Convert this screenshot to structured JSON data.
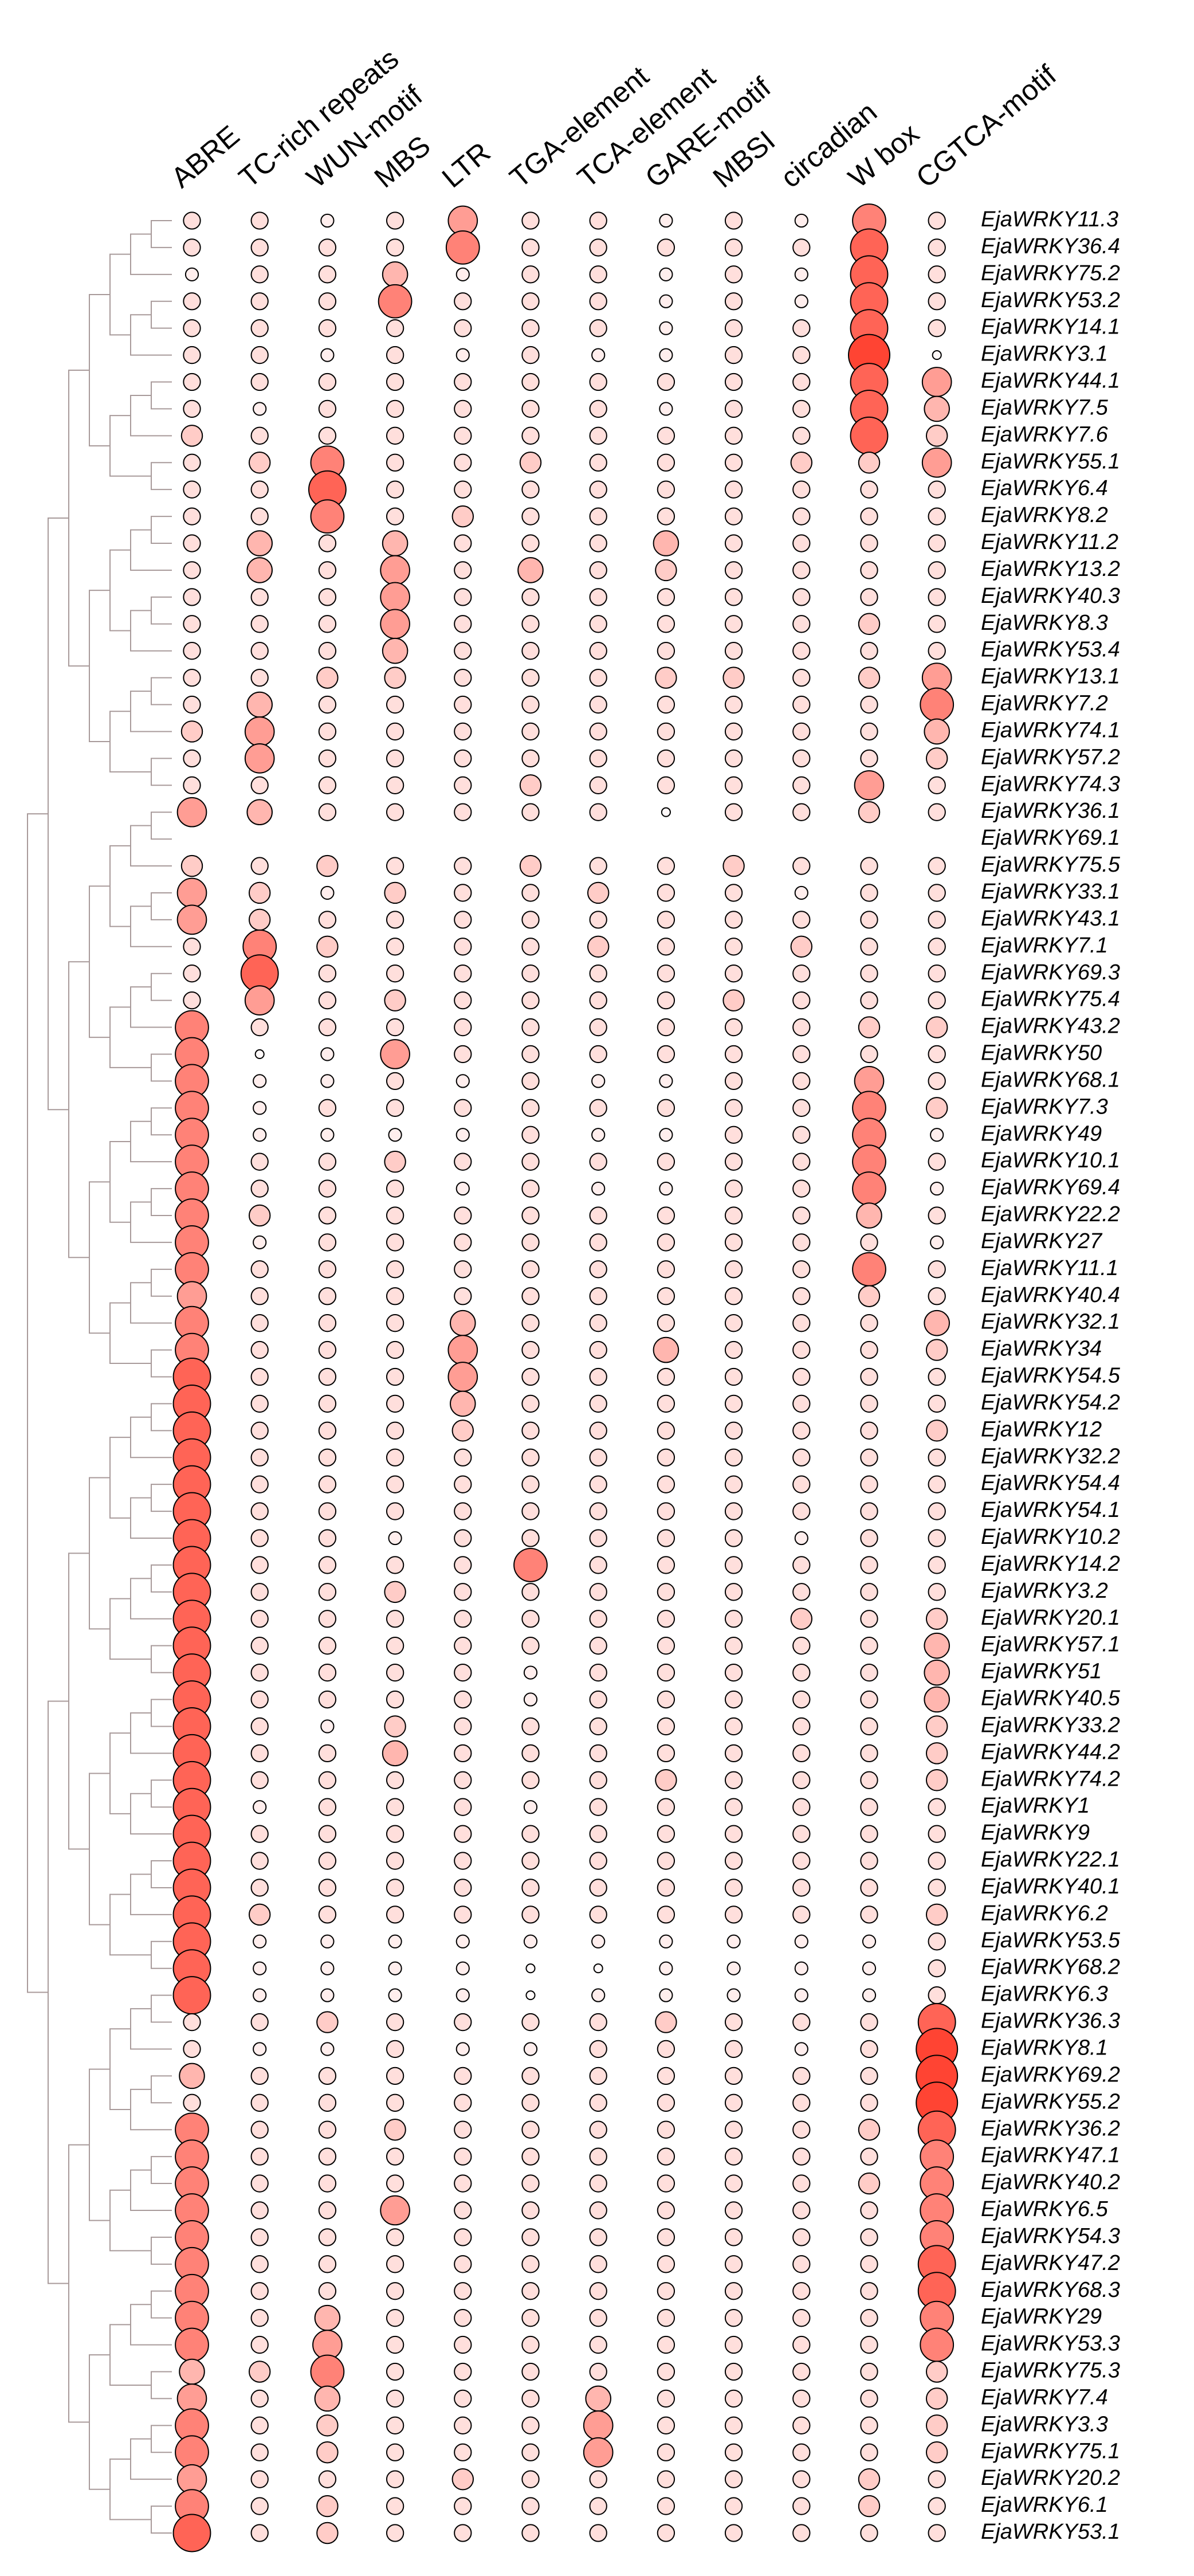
{
  "chart_data": {
    "type": "bubble",
    "columns": [
      "ABRE",
      "TC-rich repeats",
      "WUN-motif",
      "MBS",
      "LTR",
      "TGA-element",
      "TCA-element",
      "GARE-motif",
      "MBSI",
      "circadian",
      "W box",
      "CGTCA-motif"
    ],
    "rows": [
      "EjaWRKY11.3",
      "EjaWRKY36.4",
      "EjaWRKY75.2",
      "EjaWRKY53.2",
      "EjaWRKY14.1",
      "EjaWRKY3.1",
      "EjaWRKY44.1",
      "EjaWRKY7.5",
      "EjaWRKY7.6",
      "EjaWRKY55.1",
      "EjaWRKY6.4",
      "EjaWRKY8.2",
      "EjaWRKY11.2",
      "EjaWRKY13.2",
      "EjaWRKY40.3",
      "EjaWRKY8.3",
      "EjaWRKY53.4",
      "EjaWRKY13.1",
      "EjaWRKY7.2",
      "EjaWRKY74.1",
      "EjaWRKY57.2",
      "EjaWRKY74.3",
      "EjaWRKY36.1",
      "EjaWRKY69.1",
      "EjaWRKY75.5",
      "EjaWRKY33.1",
      "EjaWRKY43.1",
      "EjaWRKY7.1",
      "EjaWRKY69.3",
      "EjaWRKY75.4",
      "EjaWRKY43.2",
      "EjaWRKY50",
      "EjaWRKY68.1",
      "EjaWRKY7.3",
      "EjaWRKY49",
      "EjaWRKY10.1",
      "EjaWRKY69.4",
      "EjaWRKY22.2",
      "EjaWRKY27",
      "EjaWRKY11.1",
      "EjaWRKY40.4",
      "EjaWRKY32.1",
      "EjaWRKY34",
      "EjaWRKY54.5",
      "EjaWRKY54.2",
      "EjaWRKY12",
      "EjaWRKY32.2",
      "EjaWRKY54.4",
      "EjaWRKY54.1",
      "EjaWRKY10.2",
      "EjaWRKY14.2",
      "EjaWRKY3.2",
      "EjaWRKY20.1",
      "EjaWRKY57.1",
      "EjaWRKY51",
      "EjaWRKY40.5",
      "EjaWRKY33.2",
      "EjaWRKY44.2",
      "EjaWRKY74.2",
      "EjaWRKY1",
      "EjaWRKY9",
      "EjaWRKY22.1",
      "EjaWRKY40.1",
      "EjaWRKY6.2",
      "EjaWRKY53.5",
      "EjaWRKY68.2",
      "EjaWRKY6.3",
      "EjaWRKY36.3",
      "EjaWRKY8.1",
      "EjaWRKY69.2",
      "EjaWRKY55.2",
      "EjaWRKY36.2",
      "EjaWRKY47.1",
      "EjaWRKY40.2",
      "EjaWRKY6.5",
      "EjaWRKY54.3",
      "EjaWRKY47.2",
      "EjaWRKY68.3",
      "EjaWRKY29",
      "EjaWRKY53.3",
      "EjaWRKY75.3",
      "EjaWRKY7.4",
      "EjaWRKY3.3",
      "EjaWRKY75.1",
      "EjaWRKY20.2",
      "EjaWRKY6.1",
      "EjaWRKY53.1"
    ],
    "values": [
      [
        3,
        3,
        2,
        3,
        6,
        3,
        3,
        2,
        3,
        2,
        7,
        3
      ],
      [
        3,
        3,
        3,
        3,
        7,
        3,
        3,
        3,
        3,
        3,
        8,
        3
      ],
      [
        2,
        3,
        3,
        5,
        2,
        3,
        3,
        2,
        3,
        2,
        8,
        3
      ],
      [
        3,
        3,
        3,
        7,
        3,
        3,
        3,
        2,
        3,
        2,
        8,
        3
      ],
      [
        3,
        3,
        3,
        3,
        3,
        3,
        3,
        2,
        3,
        3,
        8,
        3
      ],
      [
        3,
        3,
        2,
        3,
        2,
        3,
        2,
        2,
        3,
        3,
        9,
        1
      ],
      [
        3,
        3,
        3,
        3,
        3,
        3,
        3,
        3,
        3,
        3,
        8,
        6
      ],
      [
        3,
        2,
        3,
        3,
        3,
        3,
        3,
        2,
        3,
        3,
        8,
        5
      ],
      [
        4,
        3,
        3,
        3,
        3,
        3,
        3,
        3,
        3,
        3,
        8,
        4
      ],
      [
        3,
        4,
        7,
        3,
        3,
        4,
        3,
        3,
        3,
        4,
        4,
        6
      ],
      [
        3,
        3,
        8,
        3,
        3,
        3,
        3,
        3,
        3,
        3,
        3,
        3
      ],
      [
        3,
        3,
        7,
        3,
        4,
        3,
        3,
        3,
        3,
        3,
        3,
        3
      ],
      [
        3,
        5,
        3,
        5,
        3,
        3,
        3,
        5,
        3,
        3,
        3,
        3
      ],
      [
        3,
        5,
        3,
        6,
        3,
        5,
        3,
        4,
        3,
        3,
        3,
        3
      ],
      [
        3,
        3,
        3,
        6,
        3,
        3,
        3,
        3,
        3,
        3,
        3,
        3
      ],
      [
        3,
        3,
        3,
        6,
        3,
        3,
        3,
        3,
        3,
        3,
        4,
        3
      ],
      [
        3,
        3,
        3,
        5,
        3,
        3,
        3,
        3,
        3,
        3,
        3,
        3
      ],
      [
        3,
        3,
        4,
        4,
        3,
        3,
        3,
        4,
        4,
        3,
        4,
        6
      ],
      [
        3,
        5,
        3,
        3,
        3,
        3,
        3,
        3,
        3,
        3,
        3,
        7
      ],
      [
        4,
        6,
        3,
        3,
        3,
        3,
        3,
        3,
        3,
        3,
        3,
        5
      ],
      [
        3,
        6,
        3,
        3,
        3,
        3,
        3,
        3,
        3,
        3,
        3,
        4
      ],
      [
        3,
        3,
        3,
        3,
        3,
        4,
        3,
        3,
        3,
        3,
        6,
        3
      ],
      [
        6,
        5,
        3,
        3,
        3,
        3,
        3,
        1,
        3,
        3,
        4,
        3
      ],
      [
        null,
        null,
        null,
        null,
        null,
        null,
        null,
        null,
        null,
        null,
        null,
        null
      ],
      [
        4,
        3,
        4,
        3,
        3,
        4,
        3,
        3,
        4,
        3,
        3,
        3
      ],
      [
        6,
        4,
        2,
        4,
        3,
        3,
        4,
        3,
        3,
        2,
        3,
        3
      ],
      [
        6,
        4,
        3,
        3,
        3,
        3,
        3,
        3,
        3,
        3,
        3,
        3
      ],
      [
        3,
        7,
        4,
        3,
        3,
        3,
        4,
        3,
        3,
        4,
        3,
        3
      ],
      [
        3,
        8,
        3,
        3,
        3,
        3,
        3,
        3,
        3,
        3,
        3,
        3
      ],
      [
        3,
        6,
        3,
        4,
        3,
        3,
        3,
        3,
        4,
        3,
        3,
        3
      ],
      [
        7,
        3,
        3,
        3,
        3,
        3,
        3,
        3,
        3,
        3,
        4,
        4
      ],
      [
        7,
        1,
        2,
        6,
        3,
        3,
        3,
        3,
        3,
        3,
        3,
        3
      ],
      [
        7,
        2,
        2,
        3,
        2,
        3,
        2,
        2,
        3,
        3,
        6,
        3
      ],
      [
        7,
        2,
        3,
        3,
        3,
        3,
        3,
        3,
        3,
        3,
        7,
        4
      ],
      [
        7,
        2,
        2,
        2,
        2,
        3,
        2,
        2,
        3,
        3,
        7,
        2
      ],
      [
        7,
        3,
        3,
        4,
        3,
        3,
        3,
        3,
        3,
        3,
        7,
        3
      ],
      [
        7,
        3,
        3,
        3,
        2,
        3,
        2,
        2,
        3,
        3,
        7,
        2
      ],
      [
        7,
        4,
        3,
        3,
        3,
        3,
        3,
        3,
        3,
        3,
        5,
        3
      ],
      [
        7,
        2,
        3,
        3,
        3,
        3,
        3,
        3,
        3,
        3,
        3,
        2
      ],
      [
        7,
        3,
        3,
        3,
        3,
        3,
        3,
        3,
        3,
        3,
        7,
        3
      ],
      [
        6,
        3,
        3,
        3,
        3,
        3,
        3,
        3,
        3,
        3,
        4,
        3
      ],
      [
        7,
        3,
        3,
        3,
        5,
        3,
        3,
        3,
        3,
        3,
        3,
        5
      ],
      [
        7,
        3,
        3,
        3,
        6,
        3,
        3,
        5,
        3,
        3,
        3,
        4
      ],
      [
        8,
        3,
        3,
        3,
        6,
        3,
        3,
        3,
        3,
        3,
        3,
        3
      ],
      [
        8,
        3,
        3,
        3,
        5,
        3,
        3,
        3,
        3,
        3,
        3,
        3
      ],
      [
        8,
        3,
        3,
        3,
        4,
        3,
        3,
        3,
        3,
        3,
        3,
        4
      ],
      [
        8,
        3,
        3,
        3,
        3,
        3,
        3,
        3,
        3,
        3,
        3,
        3
      ],
      [
        8,
        3,
        3,
        3,
        3,
        3,
        3,
        3,
        3,
        3,
        3,
        3
      ],
      [
        8,
        3,
        3,
        3,
        3,
        3,
        3,
        3,
        3,
        3,
        3,
        3
      ],
      [
        8,
        3,
        3,
        2,
        3,
        3,
        3,
        3,
        3,
        2,
        3,
        3
      ],
      [
        8,
        3,
        3,
        3,
        3,
        7,
        3,
        3,
        3,
        3,
        3,
        3
      ],
      [
        8,
        3,
        3,
        4,
        3,
        3,
        3,
        3,
        3,
        3,
        3,
        3
      ],
      [
        8,
        3,
        3,
        3,
        3,
        3,
        3,
        3,
        3,
        4,
        3,
        4
      ],
      [
        8,
        3,
        3,
        3,
        3,
        3,
        3,
        3,
        3,
        3,
        3,
        5
      ],
      [
        8,
        3,
        3,
        3,
        3,
        2,
        3,
        3,
        3,
        3,
        3,
        5
      ],
      [
        8,
        3,
        3,
        3,
        3,
        2,
        3,
        3,
        3,
        3,
        3,
        5
      ],
      [
        8,
        3,
        2,
        4,
        3,
        3,
        3,
        3,
        3,
        3,
        3,
        4
      ],
      [
        8,
        3,
        3,
        5,
        3,
        3,
        3,
        3,
        3,
        3,
        3,
        4
      ],
      [
        8,
        3,
        3,
        3,
        3,
        3,
        3,
        4,
        3,
        3,
        3,
        4
      ],
      [
        8,
        2,
        3,
        3,
        3,
        2,
        3,
        3,
        3,
        3,
        3,
        3
      ],
      [
        8,
        3,
        3,
        3,
        3,
        3,
        3,
        3,
        3,
        3,
        3,
        3
      ],
      [
        8,
        3,
        3,
        3,
        3,
        3,
        3,
        3,
        3,
        3,
        3,
        3
      ],
      [
        8,
        3,
        3,
        3,
        3,
        3,
        3,
        3,
        3,
        3,
        3,
        3
      ],
      [
        8,
        4,
        3,
        3,
        3,
        3,
        3,
        3,
        3,
        3,
        3,
        4
      ],
      [
        8,
        2,
        2,
        2,
        2,
        2,
        2,
        2,
        2,
        2,
        2,
        3
      ],
      [
        8,
        2,
        2,
        2,
        2,
        1,
        1,
        2,
        2,
        2,
        2,
        3
      ],
      [
        8,
        2,
        2,
        2,
        2,
        1,
        2,
        2,
        2,
        2,
        2,
        3
      ],
      [
        3,
        3,
        4,
        3,
        3,
        3,
        3,
        4,
        3,
        3,
        3,
        8
      ],
      [
        3,
        2,
        2,
        3,
        2,
        2,
        3,
        3,
        3,
        2,
        3,
        9
      ],
      [
        5,
        3,
        3,
        3,
        3,
        3,
        3,
        3,
        3,
        3,
        3,
        9
      ],
      [
        3,
        3,
        3,
        3,
        3,
        3,
        3,
        3,
        3,
        3,
        3,
        9
      ],
      [
        7,
        3,
        3,
        4,
        3,
        3,
        3,
        3,
        3,
        3,
        4,
        8
      ],
      [
        7,
        3,
        3,
        3,
        3,
        3,
        3,
        3,
        3,
        3,
        3,
        7
      ],
      [
        7,
        3,
        3,
        3,
        3,
        3,
        3,
        3,
        3,
        3,
        4,
        7
      ],
      [
        7,
        3,
        3,
        6,
        3,
        3,
        3,
        3,
        3,
        3,
        3,
        7
      ],
      [
        7,
        3,
        3,
        3,
        3,
        3,
        3,
        3,
        3,
        3,
        3,
        7
      ],
      [
        7,
        3,
        3,
        3,
        3,
        3,
        3,
        3,
        3,
        3,
        3,
        8
      ],
      [
        7,
        3,
        3,
        3,
        3,
        3,
        3,
        3,
        3,
        3,
        3,
        8
      ],
      [
        7,
        3,
        5,
        3,
        3,
        3,
        3,
        3,
        3,
        3,
        3,
        7
      ],
      [
        7,
        3,
        6,
        3,
        3,
        3,
        3,
        3,
        3,
        3,
        3,
        7
      ],
      [
        5,
        4,
        7,
        3,
        3,
        3,
        3,
        3,
        3,
        3,
        3,
        4
      ],
      [
        6,
        3,
        5,
        3,
        3,
        3,
        5,
        3,
        3,
        3,
        3,
        4
      ],
      [
        7,
        3,
        4,
        3,
        3,
        3,
        6,
        3,
        3,
        3,
        3,
        4
      ],
      [
        7,
        3,
        4,
        3,
        3,
        3,
        6,
        3,
        3,
        3,
        3,
        4
      ],
      [
        6,
        3,
        3,
        3,
        4,
        3,
        3,
        3,
        3,
        3,
        4,
        3
      ],
      [
        7,
        3,
        4,
        3,
        3,
        3,
        3,
        3,
        3,
        3,
        4,
        3
      ],
      [
        8,
        3,
        4,
        3,
        3,
        3,
        3,
        3,
        3,
        3,
        3,
        3
      ]
    ],
    "color": "#ff4433"
  }
}
